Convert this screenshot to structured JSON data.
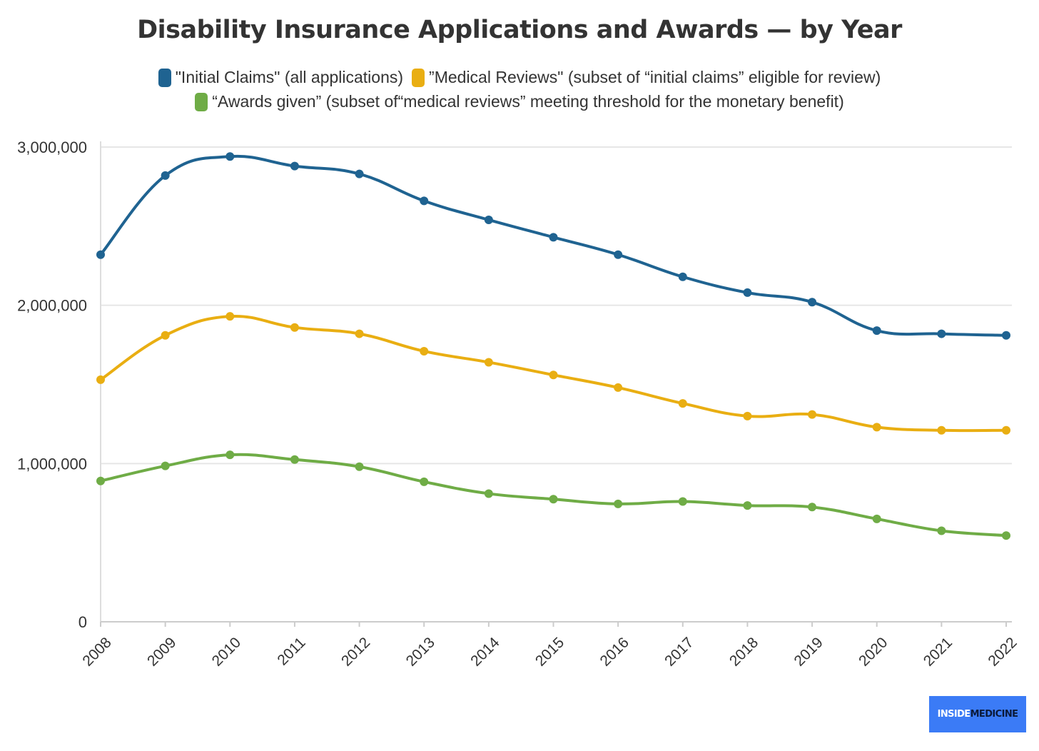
{
  "chart_data": {
    "type": "line",
    "title": "Disability Insurance Applications and Awards — by Year",
    "xlabel": "",
    "ylabel": "",
    "categories": [
      "2008",
      "2009",
      "2010",
      "2011",
      "2012",
      "2013",
      "2014",
      "2015",
      "2016",
      "2017",
      "2018",
      "2019",
      "2020",
      "2021",
      "2022"
    ],
    "ylim": [
      0,
      3000000
    ],
    "y_ticks": [
      0,
      1000000,
      2000000,
      3000000
    ],
    "y_tick_labels": [
      "0",
      "1,000,000",
      "2,000,000",
      "3,000,000"
    ],
    "grid": true,
    "legend_position": "top",
    "series": [
      {
        "name": "\"Initial Claims\" (all applications)",
        "color": "#1f6391",
        "values": [
          2320000,
          2820000,
          2940000,
          2880000,
          2830000,
          2660000,
          2540000,
          2430000,
          2320000,
          2180000,
          2080000,
          2020000,
          1840000,
          1820000,
          1810000
        ]
      },
      {
        "name": "”Medical Reviews\" (subset of “initial claims” eligible for review)",
        "color": "#e9ae12",
        "values": [
          1530000,
          1810000,
          1930000,
          1860000,
          1820000,
          1710000,
          1640000,
          1560000,
          1480000,
          1380000,
          1300000,
          1310000,
          1230000,
          1210000,
          1210000
        ]
      },
      {
        "name": "“Awards given” (subset of“medical reviews” meeting threshold for the monetary benefit)",
        "color": "#6fac46",
        "values": [
          890000,
          985000,
          1055000,
          1025000,
          980000,
          885000,
          810000,
          775000,
          745000,
          760000,
          735000,
          725000,
          650000,
          575000,
          545000
        ]
      }
    ]
  },
  "brand": {
    "part1": "INSIDE",
    "part2": "MEDICINE"
  }
}
